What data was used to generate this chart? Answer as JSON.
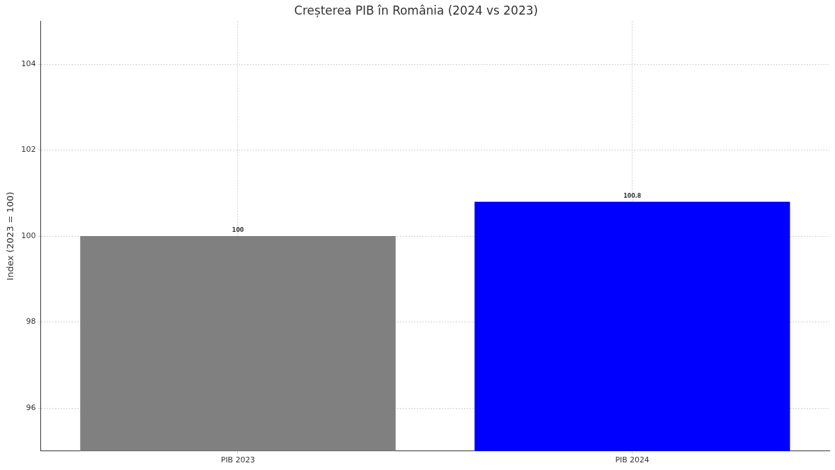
{
  "chart_data": {
    "type": "bar",
    "title": "Creșterea PIB în România (2024 vs 2023)",
    "ylabel": "Index (2023 = 100)",
    "categories": [
      "PIB 2023",
      "PIB 2024"
    ],
    "values": [
      100,
      100.8
    ],
    "colors": [
      "#808080",
      "#0000ff"
    ],
    "ylim": [
      95,
      105
    ],
    "yticks": [
      96,
      98,
      100,
      102,
      104
    ],
    "grid": true,
    "data_labels": true
  }
}
